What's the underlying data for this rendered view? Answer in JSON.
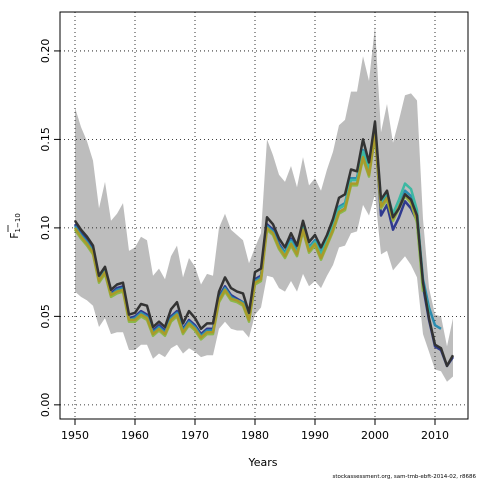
{
  "chart_data": {
    "type": "line",
    "xlabel": "Years",
    "ylabel_main": "F",
    "ylabel_sub": "1−10",
    "xlim": [
      1947.5,
      2015.5
    ],
    "ylim": [
      -0.008,
      0.222
    ],
    "x_ticks": [
      1950,
      1960,
      1970,
      1980,
      1990,
      2000,
      2010
    ],
    "y_ticks": [
      "0.00",
      "0.05",
      "0.10",
      "0.15",
      "0.20"
    ],
    "y_tick_values": [
      0.0,
      0.05,
      0.1,
      0.15,
      0.2
    ],
    "grid": true,
    "footer": "stockassessment.org, sam-tmb-ebft-2014-02, r8686",
    "colors": {
      "band": "#bdbdbd",
      "lines": [
        "#2f3a8f",
        "#2b8cb0",
        "#3cb8a2",
        "#8bb84a",
        "#a99a2a"
      ],
      "estimate": "#333333"
    },
    "band": {
      "x": [
        1950,
        1951,
        1952,
        1953,
        1954,
        1955,
        1956,
        1957,
        1958,
        1959,
        1960,
        1961,
        1962,
        1963,
        1964,
        1965,
        1966,
        1967,
        1968,
        1969,
        1970,
        1971,
        1972,
        1973,
        1974,
        1975,
        1976,
        1977,
        1978,
        1979,
        1980,
        1981,
        1982,
        1983,
        1984,
        1985,
        1986,
        1987,
        1988,
        1989,
        1990,
        1991,
        1992,
        1993,
        1994,
        1995,
        1996,
        1997,
        1998,
        1999,
        2000,
        2001,
        2002,
        2003,
        2004,
        2005,
        2006,
        2007,
        2008,
        2009,
        2010,
        2011,
        2012,
        2013
      ],
      "upper": [
        0.168,
        0.157,
        0.149,
        0.138,
        0.111,
        0.126,
        0.104,
        0.108,
        0.114,
        0.087,
        0.089,
        0.095,
        0.093,
        0.073,
        0.077,
        0.071,
        0.084,
        0.09,
        0.072,
        0.083,
        0.078,
        0.068,
        0.074,
        0.073,
        0.1,
        0.108,
        0.099,
        0.096,
        0.093,
        0.08,
        0.089,
        0.097,
        0.15,
        0.141,
        0.13,
        0.126,
        0.135,
        0.123,
        0.14,
        0.124,
        0.128,
        0.121,
        0.133,
        0.143,
        0.158,
        0.161,
        0.177,
        0.177,
        0.197,
        0.183,
        0.214,
        0.154,
        0.17,
        0.148,
        0.161,
        0.175,
        0.176,
        0.172,
        0.105,
        0.066,
        0.051,
        0.05,
        0.033,
        0.049
      ],
      "lower": [
        0.064,
        0.061,
        0.059,
        0.056,
        0.044,
        0.049,
        0.04,
        0.041,
        0.041,
        0.031,
        0.031,
        0.034,
        0.034,
        0.026,
        0.029,
        0.027,
        0.032,
        0.034,
        0.029,
        0.032,
        0.03,
        0.027,
        0.028,
        0.028,
        0.043,
        0.047,
        0.043,
        0.042,
        0.042,
        0.038,
        0.051,
        0.055,
        0.073,
        0.072,
        0.066,
        0.064,
        0.07,
        0.064,
        0.074,
        0.067,
        0.07,
        0.066,
        0.073,
        0.079,
        0.089,
        0.09,
        0.097,
        0.098,
        0.113,
        0.107,
        0.119,
        0.085,
        0.087,
        0.076,
        0.08,
        0.084,
        0.079,
        0.072,
        0.04,
        0.03,
        0.02,
        0.019,
        0.013,
        0.016
      ]
    },
    "series": [
      {
        "values": [
          0.102,
          0.097,
          0.093,
          0.088,
          0.071,
          0.076,
          0.063,
          0.066,
          0.067,
          0.049,
          0.05,
          0.053,
          0.051,
          0.042,
          0.045,
          0.042,
          0.05,
          0.053,
          0.043,
          0.048,
          0.045,
          0.04,
          0.043,
          0.043,
          0.061,
          0.067,
          0.062,
          0.06,
          0.058,
          0.049,
          0.071,
          0.073,
          0.102,
          0.099,
          0.091,
          0.086,
          0.094,
          0.087,
          0.101,
          0.089,
          0.093,
          0.085,
          0.093,
          0.101,
          0.111,
          0.113,
          0.128,
          0.128,
          0.143,
          0.132,
          0.155,
          0.107,
          0.113,
          0.099,
          0.106,
          0.115,
          0.111,
          0.104,
          0.067,
          0.048,
          0.033,
          0.031,
          0.022,
          0.027
        ]
      },
      {
        "values": [
          0.101,
          0.096,
          0.092,
          0.087,
          0.071,
          0.076,
          0.062,
          0.065,
          0.066,
          0.048,
          0.049,
          0.052,
          0.05,
          0.041,
          0.044,
          0.041,
          0.049,
          0.052,
          0.042,
          0.047,
          0.044,
          0.039,
          0.042,
          0.042,
          0.06,
          0.066,
          0.061,
          0.059,
          0.058,
          0.049,
          0.07,
          0.072,
          0.101,
          0.098,
          0.09,
          0.086,
          0.093,
          0.087,
          0.101,
          0.089,
          0.093,
          0.086,
          0.094,
          0.102,
          0.112,
          0.114,
          0.128,
          0.128,
          0.144,
          0.134,
          0.157,
          0.112,
          0.118,
          0.105,
          0.112,
          0.121,
          0.118,
          0.108,
          0.071,
          0.055,
          0.045,
          0.043,
          null,
          null
        ]
      },
      {
        "values": [
          0.1,
          0.095,
          0.091,
          0.086,
          0.07,
          0.075,
          0.062,
          0.064,
          0.065,
          0.048,
          0.048,
          0.051,
          0.049,
          0.04,
          0.043,
          0.04,
          0.048,
          0.051,
          0.041,
          0.046,
          0.043,
          0.038,
          0.041,
          0.041,
          0.059,
          0.065,
          0.06,
          0.059,
          0.057,
          0.048,
          0.069,
          0.071,
          0.1,
          0.097,
          0.089,
          0.085,
          0.092,
          0.086,
          0.1,
          0.088,
          0.092,
          0.085,
          0.093,
          0.101,
          0.111,
          0.113,
          0.127,
          0.127,
          0.143,
          0.133,
          0.156,
          0.115,
          0.12,
          0.108,
          0.116,
          0.125,
          0.122,
          0.11,
          0.068,
          0.052,
          null,
          null,
          null,
          null
        ]
      },
      {
        "values": [
          0.099,
          0.094,
          0.09,
          0.085,
          0.069,
          0.074,
          0.061,
          0.063,
          0.064,
          0.047,
          0.047,
          0.05,
          0.048,
          0.039,
          0.042,
          0.039,
          0.047,
          0.05,
          0.04,
          0.045,
          0.042,
          0.037,
          0.04,
          0.04,
          0.058,
          0.064,
          0.059,
          0.058,
          0.056,
          0.047,
          0.068,
          0.07,
          0.099,
          0.096,
          0.088,
          0.083,
          0.09,
          0.084,
          0.098,
          0.086,
          0.09,
          0.082,
          0.09,
          0.098,
          0.108,
          0.11,
          0.124,
          0.124,
          0.139,
          0.129,
          0.152,
          0.111,
          0.116,
          0.104,
          0.111,
          0.118,
          0.114,
          0.103,
          0.064,
          null,
          null,
          null,
          null,
          null
        ]
      },
      {
        "values": [
          0.1,
          0.095,
          0.091,
          0.086,
          0.07,
          0.075,
          0.062,
          0.064,
          0.065,
          0.048,
          0.048,
          0.051,
          0.049,
          0.04,
          0.043,
          0.04,
          0.048,
          0.051,
          0.041,
          0.046,
          0.043,
          0.038,
          0.041,
          0.041,
          0.059,
          0.065,
          0.06,
          0.059,
          0.057,
          0.048,
          0.069,
          0.071,
          0.1,
          0.097,
          0.089,
          0.084,
          0.091,
          0.085,
          0.099,
          0.087,
          0.091,
          0.083,
          0.091,
          0.099,
          0.109,
          0.111,
          0.125,
          0.125,
          0.14,
          0.13,
          0.153,
          0.112,
          0.117,
          0.105,
          0.112,
          0.119,
          0.115,
          0.105,
          null,
          null,
          null,
          null,
          null,
          null
        ]
      }
    ],
    "estimate": {
      "values": [
        0.104,
        0.099,
        0.095,
        0.09,
        0.073,
        0.078,
        0.065,
        0.068,
        0.069,
        0.051,
        0.052,
        0.057,
        0.056,
        0.044,
        0.047,
        0.044,
        0.054,
        0.058,
        0.046,
        0.053,
        0.049,
        0.043,
        0.046,
        0.046,
        0.064,
        0.072,
        0.066,
        0.064,
        0.063,
        0.052,
        0.075,
        0.077,
        0.106,
        0.102,
        0.094,
        0.089,
        0.097,
        0.09,
        0.104,
        0.092,
        0.096,
        0.089,
        0.096,
        0.105,
        0.117,
        0.119,
        0.133,
        0.132,
        0.15,
        0.137,
        0.16,
        0.116,
        0.121,
        0.106,
        0.111,
        0.119,
        0.116,
        0.107,
        0.069,
        0.049,
        0.034,
        0.032,
        0.022,
        0.028
      ]
    }
  }
}
